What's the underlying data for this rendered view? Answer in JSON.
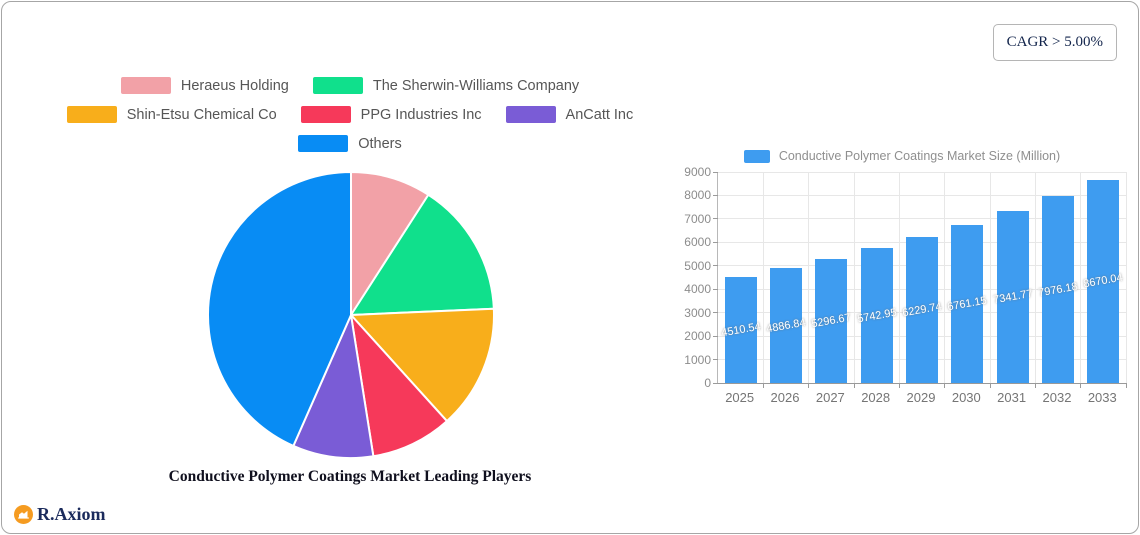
{
  "badge": {
    "cagr_label": "CAGR > 5.00%"
  },
  "logo": {
    "text": "R.Axiom",
    "icon_color": "#F59B20",
    "text_color": "#1B2B5C"
  },
  "chart_data": [
    {
      "type": "pie",
      "title": "Conductive Polymer Coatings Market Leading Players",
      "legend_position": "top",
      "direction": "clockwise",
      "start_angle_deg": 0,
      "slices": [
        {
          "label": "Heraeus Holding",
          "percent": 9.1,
          "color": "#F2A1A7"
        },
        {
          "label": "The Sherwin-Williams Company",
          "percent": 15.2,
          "color": "#10E08C"
        },
        {
          "label": "Shin-Etsu Chemical Co",
          "percent": 14.0,
          "color": "#F8AE1B"
        },
        {
          "label": "PPG Industries Inc",
          "percent": 9.2,
          "color": "#F6395A"
        },
        {
          "label": "AnCatt Inc",
          "percent": 9.1,
          "color": "#7A5CD6"
        },
        {
          "label": "Others",
          "percent": 43.4,
          "color": "#088CF4"
        }
      ]
    },
    {
      "type": "bar",
      "legend": "Conductive Polymer Coatings Market Size (Million)",
      "bar_color": "#3E9CF0",
      "categories": [
        "2025",
        "2026",
        "2027",
        "2028",
        "2029",
        "2030",
        "2031",
        "2032",
        "2033"
      ],
      "values": [
        4510.54,
        4886.84,
        5296.67,
        5742.95,
        6229.74,
        6761.15,
        7341.77,
        7976.18,
        8670.04
      ],
      "ylim": [
        0,
        9000
      ],
      "y_ticks": [
        0,
        1000,
        2000,
        3000,
        4000,
        5000,
        6000,
        7000,
        8000,
        9000
      ],
      "grid": true,
      "value_labels": "inside-center-white"
    }
  ]
}
